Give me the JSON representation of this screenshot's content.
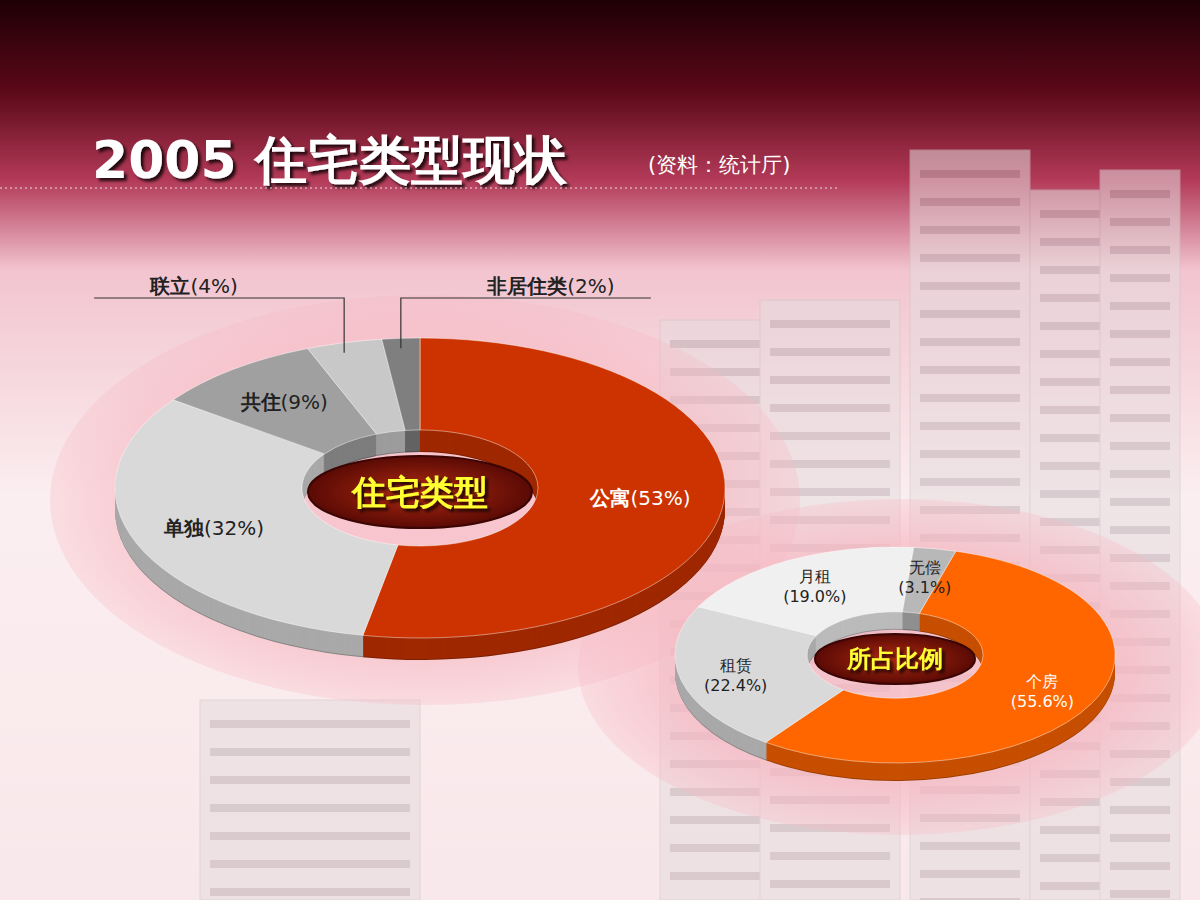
{
  "page": {
    "title": "2005 住宅类型现状",
    "source": "(资料：统计厅)"
  },
  "chart_data": [
    {
      "type": "pie",
      "title": "住宅类型",
      "categories": [
        "公寓",
        "单独",
        "共住",
        "联立",
        "非居住类"
      ],
      "values": [
        53,
        32,
        9,
        4,
        2
      ],
      "value_labels": [
        "(53%)",
        "(32%)",
        "(9%)",
        "(4%)",
        "(2%)"
      ],
      "colors": [
        "#cc3300",
        "#d9d9d9",
        "#a0a0a0",
        "#c8c8c8",
        "#7f7f7f"
      ],
      "data_labels": true
    },
    {
      "type": "pie",
      "title": "所占比例",
      "categories": [
        "个房",
        "租赁",
        "月租",
        "无偿"
      ],
      "values": [
        55.6,
        22.4,
        19.0,
        3.1
      ],
      "value_labels": [
        "(55.6%)",
        "(22.4%)",
        "(19.0%)",
        "(3.1%)"
      ],
      "colors": [
        "#ff6600",
        "#d9d9d9",
        "#f0f0f0",
        "#b8b8b8"
      ],
      "data_labels": true
    }
  ]
}
